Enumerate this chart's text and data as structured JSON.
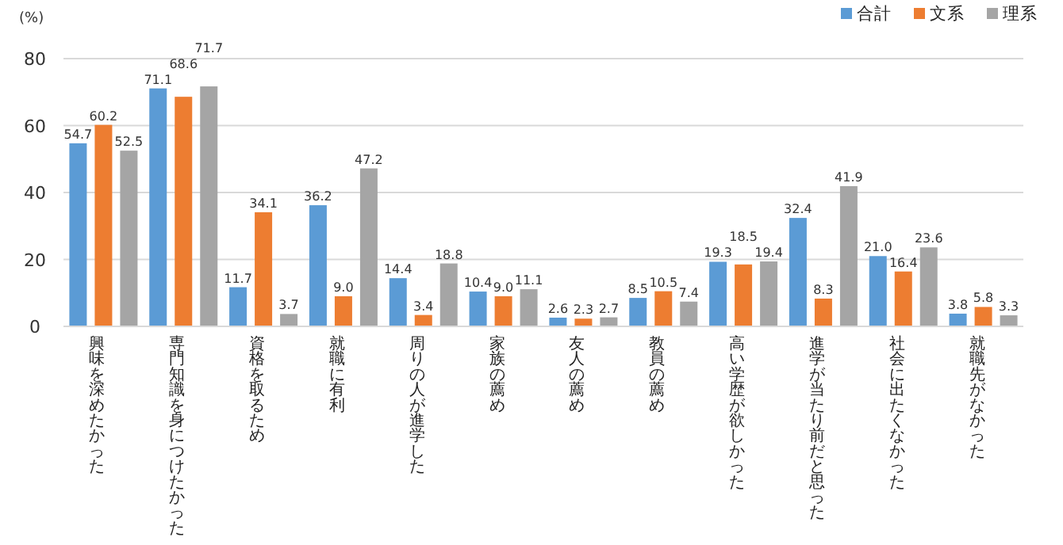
{
  "chart_data": {
    "type": "bar",
    "ylabel": "(%)",
    "categories": [
      "興味を深めたかった",
      "専門知識を身につけたかった",
      "資格を取るため",
      "就職に有利",
      "周りの人が進学した",
      "家族の薦め",
      "友人の薦め",
      "教員の薦め",
      "高い学歴が欲しかった",
      "進学が当たり前だと思った",
      "社会に出たくなかった",
      "就職先がなかった"
    ],
    "series": [
      {
        "name": "合計",
        "color": "#5b9bd5",
        "values": [
          54.7,
          71.1,
          11.7,
          36.2,
          14.4,
          10.4,
          2.6,
          8.5,
          19.3,
          32.4,
          21.0,
          3.8
        ],
        "value_labels": [
          "54.7",
          "71.1",
          "11.7",
          "36.2",
          "14.4",
          "10.4",
          "2.6",
          "8.5",
          "19.3",
          "32.4",
          "21.0",
          "3.8"
        ]
      },
      {
        "name": "文系",
        "color": "#ed7d31",
        "values": [
          60.2,
          68.6,
          34.1,
          9.0,
          3.4,
          9.0,
          2.3,
          10.5,
          18.5,
          8.3,
          16.4,
          5.8
        ],
        "value_labels": [
          "60.2",
          "68.6",
          "34.1",
          "9.0",
          "3.4",
          "9.0",
          "2.3",
          "10.5",
          "18.5",
          "8.3",
          "16.4",
          "5.8"
        ]
      },
      {
        "name": "理系",
        "color": "#a5a5a5",
        "values": [
          52.5,
          71.7,
          3.7,
          47.2,
          18.8,
          11.1,
          2.7,
          7.4,
          19.4,
          41.9,
          23.6,
          3.3
        ],
        "value_labels": [
          "52.5",
          "71.7",
          "3.7",
          "47.2",
          "18.8",
          "11.1",
          "2.7",
          "7.4",
          "19.4",
          "41.9",
          "23.6",
          "3.3"
        ]
      }
    ],
    "ylim": [
      0,
      80
    ],
    "yticks": [
      0,
      20,
      40,
      60,
      80
    ],
    "grid": "y",
    "legend": "top right"
  }
}
